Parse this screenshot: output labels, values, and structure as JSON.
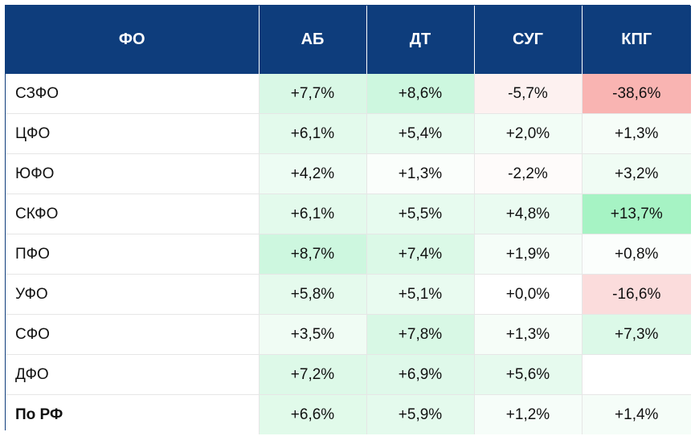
{
  "table": {
    "headers": [
      "ФО",
      "АБ",
      "ДТ",
      "СУГ",
      "КПГ"
    ],
    "rows": [
      {
        "name": "СЗФО",
        "cells": [
          {
            "text": "+7,7%",
            "bg": "#d9f8e6"
          },
          {
            "text": "+8,6%",
            "bg": "#cdf7df"
          },
          {
            "text": "-5,7%",
            "bg": "#fdf1f0"
          },
          {
            "text": "-38,6%",
            "bg": "#f9b4b2"
          }
        ]
      },
      {
        "name": "ЦФО",
        "cells": [
          {
            "text": "+6,1%",
            "bg": "#e3faec"
          },
          {
            "text": "+5,4%",
            "bg": "#e7fbef"
          },
          {
            "text": "+2,0%",
            "bg": "#f2fdf6"
          },
          {
            "text": "+1,3%",
            "bg": "#f6fdf8"
          }
        ]
      },
      {
        "name": "ЮФО",
        "cells": [
          {
            "text": "+4,2%",
            "bg": "#edfcf3"
          },
          {
            "text": "+1,3%",
            "bg": "#fafefb"
          },
          {
            "text": "-2,2%",
            "bg": "#fefbfa"
          },
          {
            "text": "+3,2%",
            "bg": "#f0fcf4"
          }
        ]
      },
      {
        "name": "СКФО",
        "cells": [
          {
            "text": "+6,1%",
            "bg": "#e3faec"
          },
          {
            "text": "+5,5%",
            "bg": "#e7fbef"
          },
          {
            "text": "+4,8%",
            "bg": "#eafbf1"
          },
          {
            "text": "+13,7%",
            "bg": "#a6f3c4"
          }
        ]
      },
      {
        "name": "ПФО",
        "cells": [
          {
            "text": "+8,7%",
            "bg": "#cdf7df"
          },
          {
            "text": "+7,4%",
            "bg": "#dbf9e7"
          },
          {
            "text": "+1,9%",
            "bg": "#f5fdf8"
          },
          {
            "text": "+0,8%",
            "bg": "#fbfefc"
          }
        ]
      },
      {
        "name": "УФО",
        "cells": [
          {
            "text": "+5,8%",
            "bg": "#e5faed"
          },
          {
            "text": "+5,1%",
            "bg": "#e9fbf0"
          },
          {
            "text": "+0,0%",
            "bg": "#ffffff"
          },
          {
            "text": "-16,6%",
            "bg": "#fbdcdc"
          }
        ]
      },
      {
        "name": "СФО",
        "cells": [
          {
            "text": "+3,5%",
            "bg": "#f0fcf4"
          },
          {
            "text": "+7,8%",
            "bg": "#d8f8e5"
          },
          {
            "text": "+1,3%",
            "bg": "#f6fdf8"
          },
          {
            "text": "+7,3%",
            "bg": "#dcf9e8"
          }
        ]
      },
      {
        "name": "ДФО",
        "cells": [
          {
            "text": "+7,2%",
            "bg": "#ddf9e8"
          },
          {
            "text": "+6,9%",
            "bg": "#dff9ea"
          },
          {
            "text": "+5,6%",
            "bg": "#e6faee"
          },
          {
            "text": "",
            "bg": "#ffffff"
          }
        ]
      },
      {
        "name": "По РФ",
        "total": true,
        "cells": [
          {
            "text": "+6,6%",
            "bg": "#e1faea"
          },
          {
            "text": "+5,9%",
            "bg": "#e4faed"
          },
          {
            "text": "+1,2%",
            "bg": "#f6fdf9"
          },
          {
            "text": "+1,4%",
            "bg": "#f5fdf8"
          }
        ]
      }
    ]
  },
  "colors": {
    "header_bg": "#0e3d7c",
    "header_text": "#ffffff",
    "grid": "#e6e6e6"
  }
}
